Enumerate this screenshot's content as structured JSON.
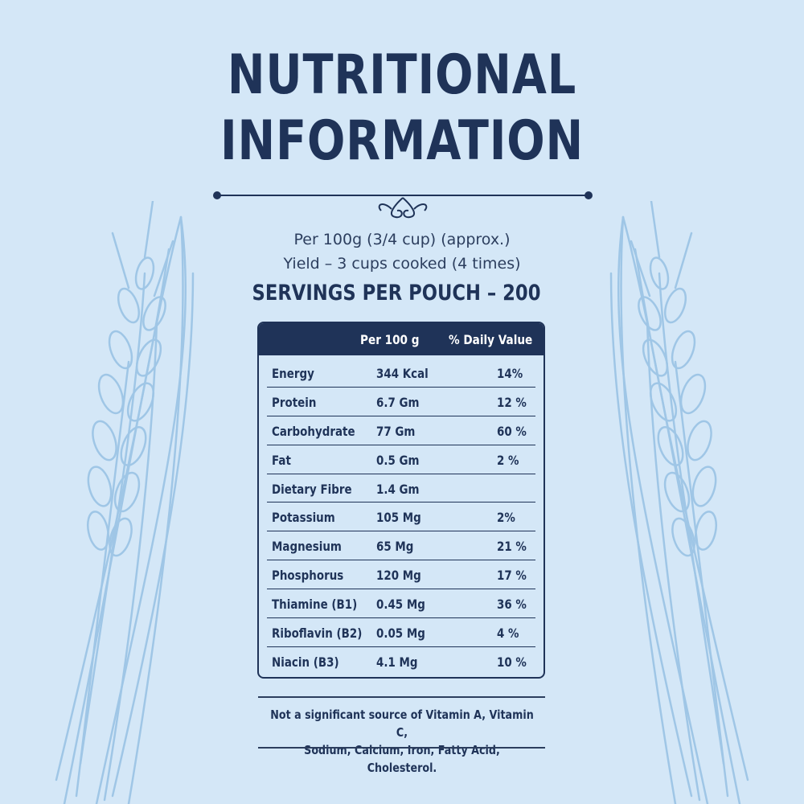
{
  "title": {
    "line1": "NUTRITIONAL",
    "line2": "INFORMATION"
  },
  "serving_info": {
    "per": "Per 100g (3/4 cup) (approx.)",
    "yield": "Yield – 3 cups cooked (4 times)",
    "servings": "SERVINGS PER POUCH – 200"
  },
  "table": {
    "headers": {
      "per": "Per 100 g",
      "daily_value": "% Daily Value"
    },
    "rows": [
      {
        "name": "Energy",
        "amount": "344 Kcal",
        "dv": "14%"
      },
      {
        "name": "Protein",
        "amount": "6.7 Gm",
        "dv": "12 %"
      },
      {
        "name": "Carbohydrate",
        "amount": "77 Gm",
        "dv": "60 %"
      },
      {
        "name": "Fat",
        "amount": "0.5 Gm",
        "dv": "2 %"
      },
      {
        "name": "Dietary Fibre",
        "amount": "1.4 Gm",
        "dv": ""
      },
      {
        "name": "Potassium",
        "amount": "105 Mg",
        "dv": "2%"
      },
      {
        "name": "Magnesium",
        "amount": "65 Mg",
        "dv": "21 %"
      },
      {
        "name": "Phosphorus",
        "amount": "120 Mg",
        "dv": "17 %"
      },
      {
        "name": "Thiamine (B1)",
        "amount": "0.45 Mg",
        "dv": "36 %"
      },
      {
        "name": "Riboflavin (B2)",
        "amount": "0.05 Mg",
        "dv": "4 %"
      },
      {
        "name": "Niacin (B3)",
        "amount": "4.1 Mg",
        "dv": "10 %"
      }
    ]
  },
  "footnote": {
    "line1": "Not a significant source of Vitamin A, Vitamin C,",
    "line2": "Sodium, Calcium, Iron, Fatty Acid, Cholesterol."
  },
  "colors": {
    "background": "#d4e7f7",
    "navy": "#1f3358",
    "wheat": "#9fc6e6"
  },
  "decorations": {
    "left": "wheat-stalk-illustration",
    "right": "wheat-stalk-illustration",
    "divider": "ornamental-scroll-divider"
  }
}
